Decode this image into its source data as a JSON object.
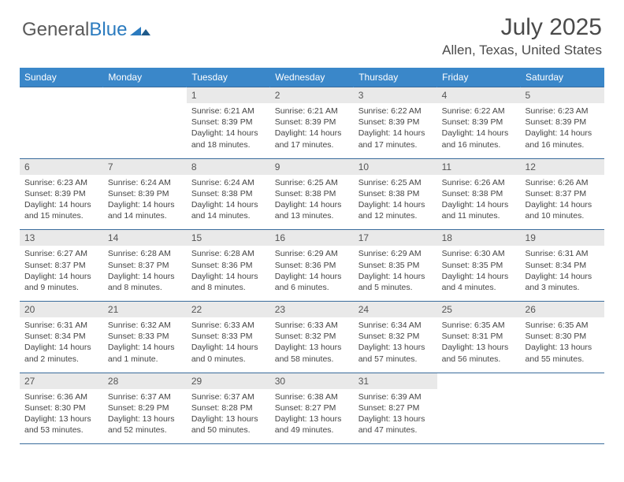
{
  "brand": {
    "part1": "General",
    "part2": "Blue"
  },
  "title": "July 2025",
  "location": "Allen, Texas, United States",
  "dayHeaders": [
    "Sunday",
    "Monday",
    "Tuesday",
    "Wednesday",
    "Thursday",
    "Friday",
    "Saturday"
  ],
  "colors": {
    "headerBg": "#3a87c9",
    "headerText": "#ffffff",
    "dayNumBg": "#e9e9e9",
    "border": "#3a6c9c",
    "brandBlue": "#2b7bbf",
    "text": "#4a4a4a"
  },
  "weeks": [
    [
      null,
      null,
      {
        "n": "1",
        "sr": "6:21 AM",
        "ss": "8:39 PM",
        "dl": "14 hours and 18 minutes"
      },
      {
        "n": "2",
        "sr": "6:21 AM",
        "ss": "8:39 PM",
        "dl": "14 hours and 17 minutes"
      },
      {
        "n": "3",
        "sr": "6:22 AM",
        "ss": "8:39 PM",
        "dl": "14 hours and 17 minutes"
      },
      {
        "n": "4",
        "sr": "6:22 AM",
        "ss": "8:39 PM",
        "dl": "14 hours and 16 minutes"
      },
      {
        "n": "5",
        "sr": "6:23 AM",
        "ss": "8:39 PM",
        "dl": "14 hours and 16 minutes"
      }
    ],
    [
      {
        "n": "6",
        "sr": "6:23 AM",
        "ss": "8:39 PM",
        "dl": "14 hours and 15 minutes"
      },
      {
        "n": "7",
        "sr": "6:24 AM",
        "ss": "8:39 PM",
        "dl": "14 hours and 14 minutes"
      },
      {
        "n": "8",
        "sr": "6:24 AM",
        "ss": "8:38 PM",
        "dl": "14 hours and 14 minutes"
      },
      {
        "n": "9",
        "sr": "6:25 AM",
        "ss": "8:38 PM",
        "dl": "14 hours and 13 minutes"
      },
      {
        "n": "10",
        "sr": "6:25 AM",
        "ss": "8:38 PM",
        "dl": "14 hours and 12 minutes"
      },
      {
        "n": "11",
        "sr": "6:26 AM",
        "ss": "8:38 PM",
        "dl": "14 hours and 11 minutes"
      },
      {
        "n": "12",
        "sr": "6:26 AM",
        "ss": "8:37 PM",
        "dl": "14 hours and 10 minutes"
      }
    ],
    [
      {
        "n": "13",
        "sr": "6:27 AM",
        "ss": "8:37 PM",
        "dl": "14 hours and 9 minutes"
      },
      {
        "n": "14",
        "sr": "6:28 AM",
        "ss": "8:37 PM",
        "dl": "14 hours and 8 minutes"
      },
      {
        "n": "15",
        "sr": "6:28 AM",
        "ss": "8:36 PM",
        "dl": "14 hours and 8 minutes"
      },
      {
        "n": "16",
        "sr": "6:29 AM",
        "ss": "8:36 PM",
        "dl": "14 hours and 6 minutes"
      },
      {
        "n": "17",
        "sr": "6:29 AM",
        "ss": "8:35 PM",
        "dl": "14 hours and 5 minutes"
      },
      {
        "n": "18",
        "sr": "6:30 AM",
        "ss": "8:35 PM",
        "dl": "14 hours and 4 minutes"
      },
      {
        "n": "19",
        "sr": "6:31 AM",
        "ss": "8:34 PM",
        "dl": "14 hours and 3 minutes"
      }
    ],
    [
      {
        "n": "20",
        "sr": "6:31 AM",
        "ss": "8:34 PM",
        "dl": "14 hours and 2 minutes"
      },
      {
        "n": "21",
        "sr": "6:32 AM",
        "ss": "8:33 PM",
        "dl": "14 hours and 1 minute"
      },
      {
        "n": "22",
        "sr": "6:33 AM",
        "ss": "8:33 PM",
        "dl": "14 hours and 0 minutes"
      },
      {
        "n": "23",
        "sr": "6:33 AM",
        "ss": "8:32 PM",
        "dl": "13 hours and 58 minutes"
      },
      {
        "n": "24",
        "sr": "6:34 AM",
        "ss": "8:32 PM",
        "dl": "13 hours and 57 minutes"
      },
      {
        "n": "25",
        "sr": "6:35 AM",
        "ss": "8:31 PM",
        "dl": "13 hours and 56 minutes"
      },
      {
        "n": "26",
        "sr": "6:35 AM",
        "ss": "8:30 PM",
        "dl": "13 hours and 55 minutes"
      }
    ],
    [
      {
        "n": "27",
        "sr": "6:36 AM",
        "ss": "8:30 PM",
        "dl": "13 hours and 53 minutes"
      },
      {
        "n": "28",
        "sr": "6:37 AM",
        "ss": "8:29 PM",
        "dl": "13 hours and 52 minutes"
      },
      {
        "n": "29",
        "sr": "6:37 AM",
        "ss": "8:28 PM",
        "dl": "13 hours and 50 minutes"
      },
      {
        "n": "30",
        "sr": "6:38 AM",
        "ss": "8:27 PM",
        "dl": "13 hours and 49 minutes"
      },
      {
        "n": "31",
        "sr": "6:39 AM",
        "ss": "8:27 PM",
        "dl": "13 hours and 47 minutes"
      },
      null,
      null
    ]
  ],
  "labels": {
    "sunrise": "Sunrise: ",
    "sunset": "Sunset: ",
    "daylight": "Daylight: "
  }
}
